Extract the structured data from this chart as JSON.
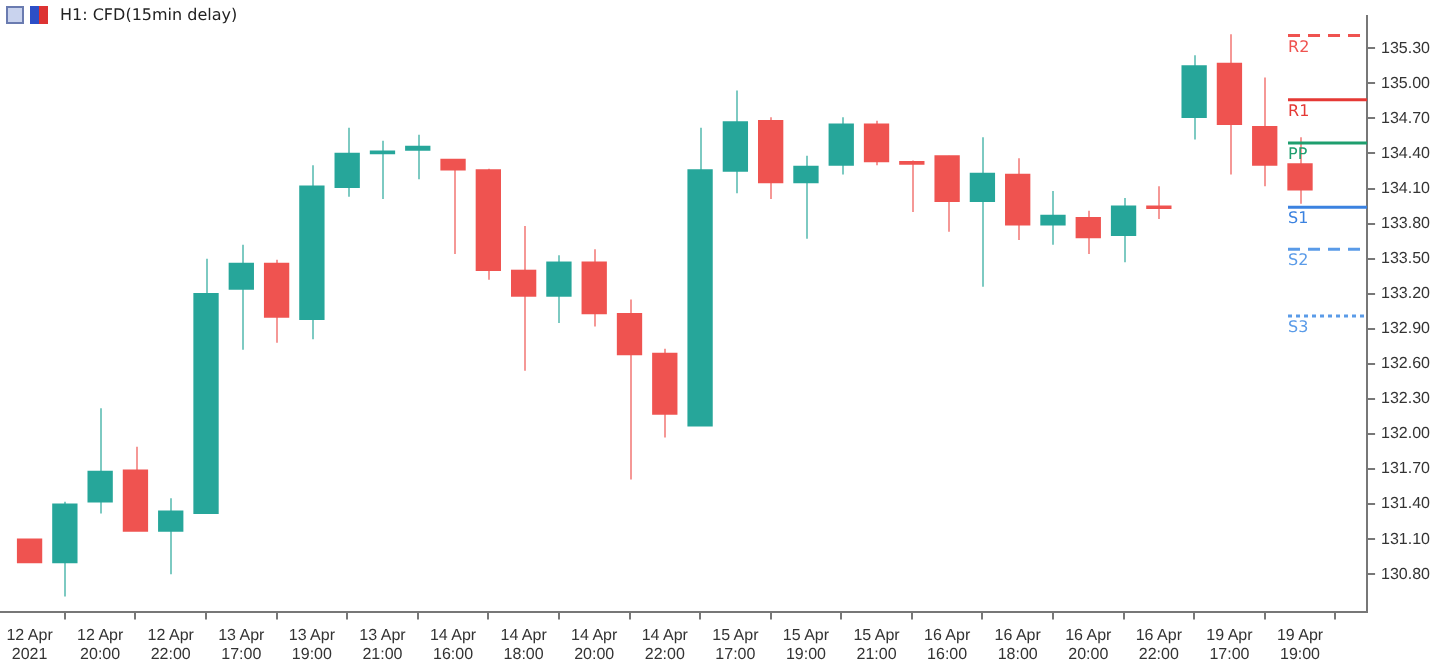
{
  "chart_data": {
    "type": "candlestick",
    "title": "H1: CFD(15min delay)",
    "categories": [
      "12 Apr 2021",
      null,
      "12 Apr 20:00",
      null,
      "12 Apr 22:00",
      null,
      "13 Apr 17:00",
      null,
      "13 Apr 19:00",
      null,
      "13 Apr 21:00",
      null,
      "14 Apr 16:00",
      null,
      "14 Apr 18:00",
      null,
      "14 Apr 20:00",
      null,
      "14 Apr 22:00",
      null,
      "15 Apr 17:00",
      null,
      "15 Apr 19:00",
      null,
      "15 Apr 21:00",
      null,
      "16 Apr 16:00",
      null,
      "16 Apr 18:00",
      null,
      "16 Apr 20:00",
      null,
      "16 Apr 22:00",
      null,
      "19 Apr 17:00",
      null,
      "19 Apr 19:00"
    ],
    "ohlc": [
      [
        131.1,
        131.1,
        130.9,
        130.9
      ],
      [
        130.9,
        131.42,
        130.61,
        131.4
      ],
      [
        131.42,
        132.22,
        131.32,
        131.68
      ],
      [
        131.69,
        131.89,
        131.17,
        131.17
      ],
      [
        131.17,
        131.45,
        130.8,
        131.34
      ],
      [
        131.32,
        133.5,
        131.32,
        133.2
      ],
      [
        133.24,
        133.62,
        132.72,
        133.46
      ],
      [
        133.46,
        133.49,
        132.78,
        133.0
      ],
      [
        132.98,
        134.3,
        132.81,
        134.12
      ],
      [
        134.11,
        134.62,
        134.03,
        134.4
      ],
      [
        134.4,
        134.51,
        134.01,
        134.42
      ],
      [
        134.43,
        134.56,
        134.18,
        134.46
      ],
      [
        134.35,
        134.35,
        133.54,
        134.26
      ],
      [
        134.26,
        134.27,
        133.32,
        133.4
      ],
      [
        133.4,
        133.78,
        132.54,
        133.18
      ],
      [
        133.18,
        133.53,
        132.95,
        133.47
      ],
      [
        133.47,
        133.58,
        132.92,
        133.03
      ],
      [
        133.03,
        133.15,
        131.61,
        132.68
      ],
      [
        132.69,
        132.73,
        131.97,
        132.17
      ],
      [
        132.07,
        134.62,
        132.07,
        134.26
      ],
      [
        134.25,
        134.94,
        134.06,
        134.67
      ],
      [
        134.68,
        134.71,
        134.01,
        134.15
      ],
      [
        134.15,
        134.38,
        133.67,
        134.29
      ],
      [
        134.3,
        134.71,
        134.22,
        134.65
      ],
      [
        134.65,
        134.68,
        134.3,
        134.33
      ],
      [
        134.33,
        134.34,
        133.9,
        134.31
      ],
      [
        134.38,
        134.38,
        133.73,
        133.99
      ],
      [
        133.99,
        134.54,
        133.26,
        134.23
      ],
      [
        134.22,
        134.36,
        133.66,
        133.79
      ],
      [
        133.79,
        134.08,
        133.62,
        133.87
      ],
      [
        133.85,
        133.91,
        133.54,
        133.68
      ],
      [
        133.7,
        134.02,
        133.47,
        133.95
      ],
      [
        133.95,
        134.12,
        133.84,
        133.93
      ],
      [
        134.71,
        135.24,
        134.52,
        135.15
      ],
      [
        135.17,
        135.42,
        134.22,
        134.65
      ],
      [
        134.63,
        135.05,
        134.12,
        134.3
      ],
      [
        134.31,
        134.54,
        133.97,
        134.09
      ]
    ],
    "colors": [
      "#ef5350",
      "#26a69a",
      "#26a69a",
      "#ef5350",
      "#26a69a",
      "#26a69a",
      "#26a69a",
      "#ef5350",
      "#26a69a",
      "#26a69a",
      "#26a69a",
      "#26a69a",
      "#ef5350",
      "#ef5350",
      "#ef5350",
      "#26a69a",
      "#ef5350",
      "#ef5350",
      "#ef5350",
      "#26a69a",
      "#26a69a",
      "#ef5350",
      "#26a69a",
      "#26a69a",
      "#ef5350",
      "#ef5350",
      "#ef5350",
      "#26a69a",
      "#ef5350",
      "#26a69a",
      "#ef5350",
      "#26a69a",
      "#ef5350",
      "#26a69a",
      "#ef5350",
      "#ef5350",
      "#ef5350"
    ],
    "ylim": [
      130.48,
      135.58
    ],
    "yticks": [
      {
        "value": 130.8,
        "label": "130.80"
      },
      {
        "value": 131.1,
        "label": "131.10"
      },
      {
        "value": 131.4,
        "label": "131.40"
      },
      {
        "value": 131.7,
        "label": "131.70"
      },
      {
        "value": 132.0,
        "label": "132.00"
      },
      {
        "value": 132.3,
        "label": "132.30"
      },
      {
        "value": 132.6,
        "label": "132.60"
      },
      {
        "value": 132.9,
        "label": "132.90"
      },
      {
        "value": 133.2,
        "label": "133.20"
      },
      {
        "value": 133.5,
        "label": "133.50"
      },
      {
        "value": 133.8,
        "label": "133.80"
      },
      {
        "value": 134.1,
        "label": "134.10"
      },
      {
        "value": 134.4,
        "label": "134.40"
      },
      {
        "value": 134.7,
        "label": "134.70"
      },
      {
        "value": 135.0,
        "label": "135.00"
      },
      {
        "value": 135.3,
        "label": "135.30"
      }
    ],
    "ref_lines": [
      {
        "axis": "y",
        "value": 135.41,
        "label": "R2",
        "color": "#ef5350",
        "line_style": "dashed"
      },
      {
        "axis": "y",
        "value": 134.86,
        "label": "R1",
        "color": "#e53935",
        "line_style": "solid"
      },
      {
        "axis": "y",
        "value": 134.49,
        "label": "PP",
        "color": "#1e9e6e",
        "line_style": "solid"
      },
      {
        "axis": "y",
        "value": 133.94,
        "label": "S1",
        "color": "#3b82e0",
        "line_style": "solid"
      },
      {
        "axis": "y",
        "value": 133.58,
        "label": "S2",
        "color": "#5a9be8",
        "line_style": "dashed"
      },
      {
        "axis": "y",
        "value": 133.01,
        "label": "S3",
        "color": "#5a9be8",
        "line_style": "dotted"
      }
    ],
    "grid": false,
    "legend": false
  }
}
